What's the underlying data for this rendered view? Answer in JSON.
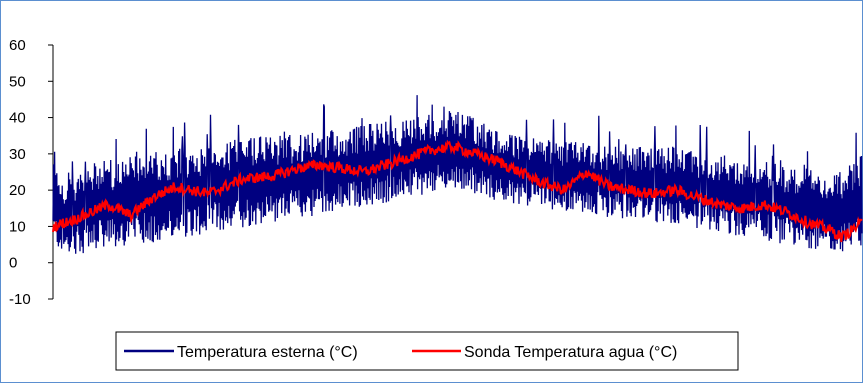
{
  "chart_data": {
    "type": "line",
    "title": "",
    "xlabel": "",
    "ylabel": "",
    "ylim": [
      -10,
      60
    ],
    "yticks": [
      -10,
      0,
      10,
      20,
      30,
      40,
      50,
      60
    ],
    "ytick_labels": [
      "-10",
      "0",
      "10",
      "20",
      "30",
      "40",
      "50",
      "60"
    ],
    "x_count": 365,
    "grid": false,
    "legend_position": "bottom",
    "series": [
      {
        "name": "Temperatura esterna (°C)",
        "color": "#000080",
        "envelope_x": [
          0,
          5,
          20,
          40,
          60,
          80,
          100,
          120,
          140,
          160,
          180,
          190,
          200,
          220,
          240,
          260,
          280,
          300,
          320,
          340,
          355,
          364
        ],
        "daily_min": [
          5,
          2,
          3,
          5,
          7,
          9,
          11,
          13,
          15,
          18,
          20,
          19,
          17,
          15,
          13,
          12,
          10,
          8,
          6,
          4,
          3,
          4
        ],
        "daily_max": [
          34,
          22,
          28,
          30,
          32,
          34,
          35,
          36,
          38,
          40,
          42,
          40,
          36,
          34,
          33,
          32,
          32,
          30,
          28,
          26,
          25,
          30
        ]
      },
      {
        "name": "Sonda Temperatura agua (°C)",
        "color": "#ff0000",
        "x": [
          0,
          10,
          25,
          35,
          45,
          55,
          70,
          85,
          100,
          110,
          120,
          130,
          140,
          150,
          160,
          170,
          180,
          190,
          200,
          210,
          220,
          230,
          240,
          250,
          260,
          270,
          280,
          290,
          300,
          310,
          320,
          330,
          340,
          350,
          355,
          364
        ],
        "values": [
          10,
          12,
          16,
          13,
          18,
          21,
          19,
          23,
          24,
          26,
          27,
          26,
          25,
          27,
          29,
          31,
          32,
          30,
          28,
          25,
          22,
          20,
          25,
          21,
          20,
          19,
          20,
          18,
          16,
          15,
          16,
          14,
          11,
          9,
          7,
          11
        ]
      }
    ]
  }
}
